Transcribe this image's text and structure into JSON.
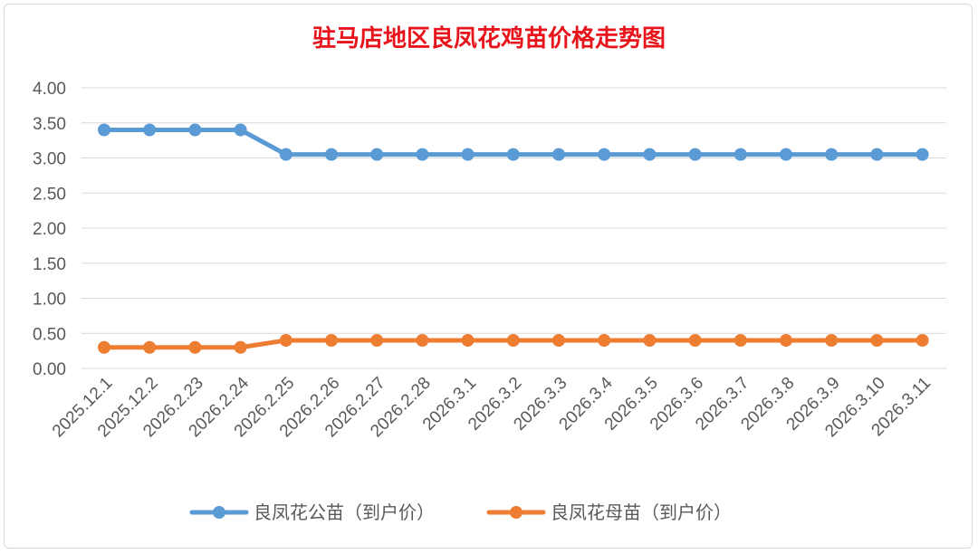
{
  "colors": {
    "male": "#5b9bd5",
    "female": "#ed7d31",
    "title": "#e8141b",
    "grid": "#d9d9d9",
    "text": "#595959"
  },
  "chart_data": {
    "type": "line",
    "title": "驻马店地区良凤花鸡苗价格走势图",
    "xlabel": "",
    "ylabel": "",
    "ylim": [
      0,
      4
    ],
    "yticks": [
      "4.00",
      "3.50",
      "3.00",
      "2.50",
      "2.00",
      "1.50",
      "1.00",
      "0.50",
      "0.00"
    ],
    "grid": "horizontal",
    "legend_position": "bottom",
    "categories": [
      "2025.12.1",
      "2025.12.2",
      "2026.2.23",
      "2026.2.24",
      "2026.2.25",
      "2026.2.26",
      "2026.2.27",
      "2026.2.28",
      "2026.3.1",
      "2026.3.2",
      "2026.3.3",
      "2026.3.4",
      "2026.3.5",
      "2026.3.6",
      "2026.3.7",
      "2026.3.8",
      "2026.3.9",
      "2026.3.10",
      "2026.3.11"
    ],
    "series": [
      {
        "name": "良凤花公苗（到户价）",
        "color": "#5b9bd5",
        "values": [
          3.4,
          3.4,
          3.4,
          3.4,
          3.05,
          3.05,
          3.05,
          3.05,
          3.05,
          3.05,
          3.05,
          3.05,
          3.05,
          3.05,
          3.05,
          3.05,
          3.05,
          3.05,
          3.05
        ]
      },
      {
        "name": "良凤花母苗（到户价）",
        "color": "#ed7d31",
        "values": [
          0.3,
          0.3,
          0.3,
          0.3,
          0.4,
          0.4,
          0.4,
          0.4,
          0.4,
          0.4,
          0.4,
          0.4,
          0.4,
          0.4,
          0.4,
          0.4,
          0.4,
          0.4,
          0.4
        ]
      }
    ]
  }
}
